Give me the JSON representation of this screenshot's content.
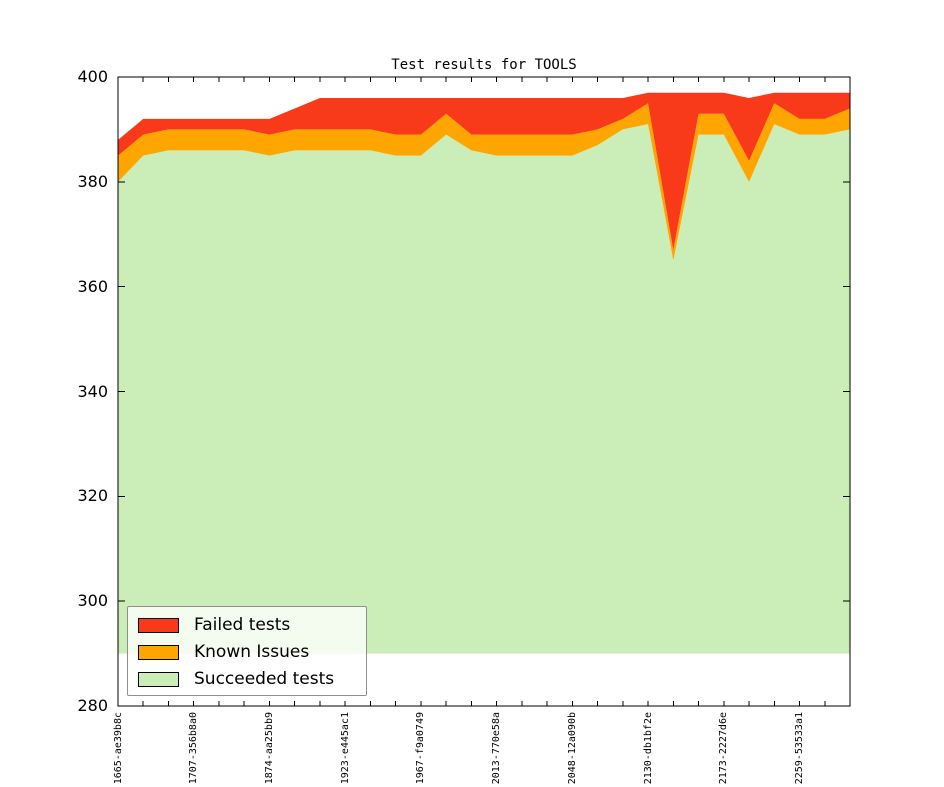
{
  "title": "Test results for TOOLS",
  "colors": {
    "failed": "#f8391a",
    "known_issues": "#ffa500",
    "succeeded": "#cbedb8",
    "axis": "#000000",
    "legend_border": "#8f8f8f"
  },
  "legend": {
    "entries": [
      {
        "label": "Failed tests",
        "color_key": "failed"
      },
      {
        "label": "Known Issues",
        "color_key": "known_issues"
      },
      {
        "label": "Succeeded tests",
        "color_key": "succeeded"
      }
    ],
    "position": "lower left"
  },
  "chart_data": {
    "type": "area",
    "stacked": true,
    "title": "Test results for TOOLS",
    "xlabel": "",
    "ylabel": "",
    "ylim": [
      280,
      400
    ],
    "yticks": [
      280,
      300,
      320,
      340,
      360,
      380,
      400
    ],
    "baseline": 290,
    "grid": false,
    "n_points": 30,
    "x_label_every": 3,
    "x_labels": [
      "1665-ae39b8c",
      "1707-356b8a0",
      "1874-aa25bb9",
      "1923-e445ac1",
      "1967-f9a0749",
      "2013-770e58a",
      "2048-12a090b",
      "2130-db1bf2e",
      "2173-2227d6e",
      "2259-53533a1"
    ],
    "series": [
      {
        "name": "Succeeded tests",
        "color_key": "succeeded",
        "values": [
          380,
          385,
          386,
          386,
          386,
          386,
          385,
          386,
          386,
          386,
          386,
          385,
          385,
          389,
          386,
          385,
          385,
          385,
          385,
          387,
          390,
          391,
          365,
          389,
          389,
          380,
          391,
          389,
          389,
          390
        ]
      },
      {
        "name": "Known Issues",
        "color_key": "known_issues",
        "values": [
          5,
          4,
          4,
          4,
          4,
          4,
          4,
          4,
          4,
          4,
          4,
          4,
          4,
          4,
          3,
          4,
          4,
          4,
          4,
          3,
          2,
          4,
          2,
          4,
          4,
          4,
          4,
          3,
          3,
          4
        ]
      },
      {
        "name": "Failed tests",
        "color_key": "failed",
        "values": [
          3,
          3,
          2,
          2,
          2,
          2,
          3,
          4,
          6,
          6,
          6,
          7,
          7,
          3,
          7,
          7,
          7,
          7,
          7,
          6,
          4,
          2,
          30,
          4,
          4,
          12,
          2,
          5,
          5,
          3
        ]
      }
    ]
  }
}
